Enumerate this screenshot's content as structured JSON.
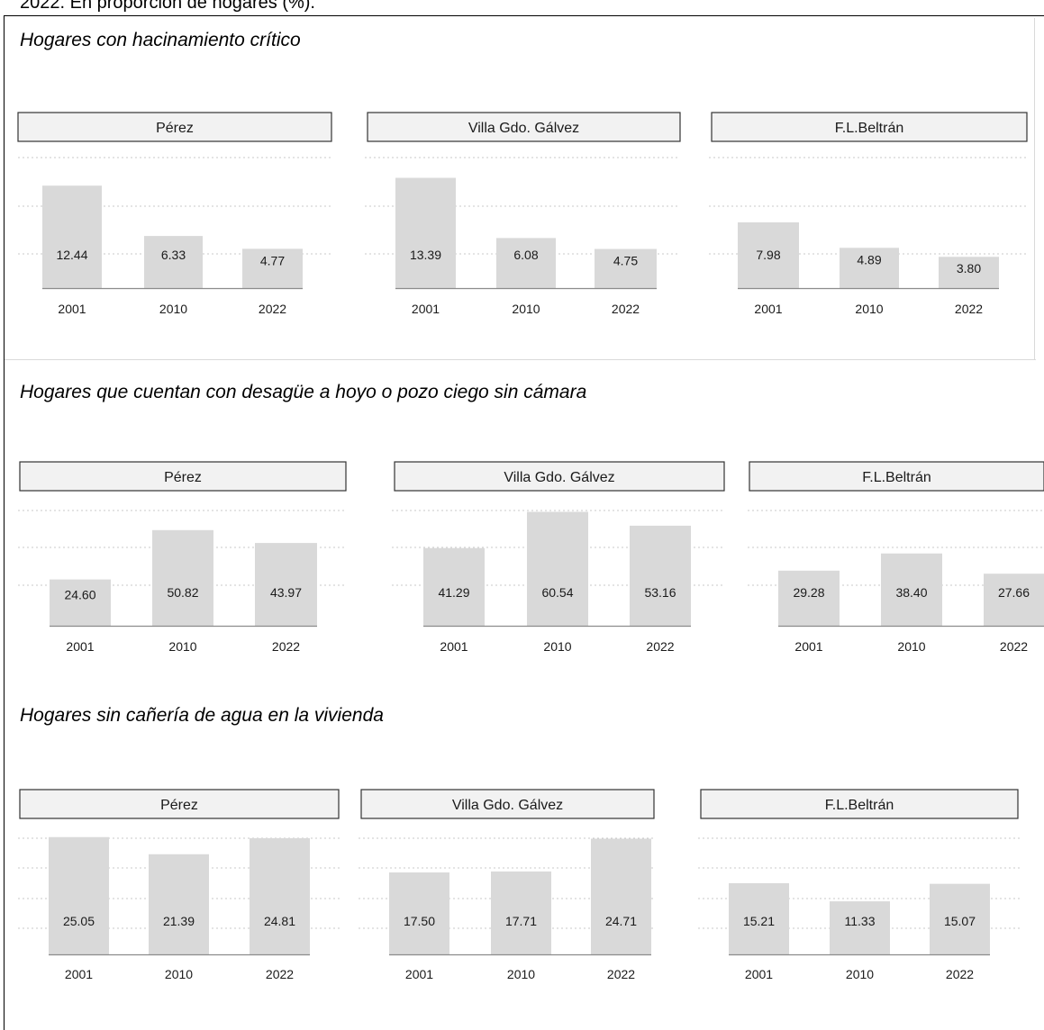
{
  "caption_fragment": "2022. En proporción de hogares (%).",
  "colors": {
    "bar": "#d9d9d9",
    "grid": "#c8c8c8",
    "strip_bg": "#f2f2f2",
    "strip_border": "#333333",
    "baseline": "#8c8c8c"
  },
  "chart_data": [
    {
      "type": "bar",
      "title": "Hogares con hacinamiento crítico",
      "categories": [
        "2001",
        "2010",
        "2022"
      ],
      "panels": [
        {
          "name": "Pérez",
          "values": [
            12.44,
            6.33,
            4.77
          ]
        },
        {
          "name": "Villa Gdo. Gálvez",
          "values": [
            13.39,
            6.08,
            4.75
          ]
        },
        {
          "name": "F.L.Beltrán",
          "values": [
            7.98,
            4.89,
            3.8
          ]
        }
      ]
    },
    {
      "type": "bar",
      "title": "Hogares que cuentan con desagüe a hoyo o pozo ciego sin cámara",
      "categories": [
        "2001",
        "2010",
        "2022"
      ],
      "panels": [
        {
          "name": "Pérez",
          "values": [
            24.6,
            50.82,
            43.97
          ]
        },
        {
          "name": "Villa Gdo. Gálvez",
          "values": [
            41.29,
            60.54,
            53.16
          ]
        },
        {
          "name": "F.L.Beltrán",
          "values": [
            29.28,
            38.4,
            27.66
          ]
        }
      ]
    },
    {
      "type": "bar",
      "title": "Hogares sin cañería de agua en la vivienda",
      "categories": [
        "2001",
        "2010",
        "2022"
      ],
      "panels": [
        {
          "name": "Pérez",
          "values": [
            25.05,
            21.39,
            24.81
          ]
        },
        {
          "name": "Villa Gdo. Gálvez",
          "values": [
            17.5,
            17.71,
            24.71
          ]
        },
        {
          "name": "F.L.Beltrán",
          "values": [
            15.21,
            11.33,
            15.07
          ]
        }
      ]
    }
  ]
}
